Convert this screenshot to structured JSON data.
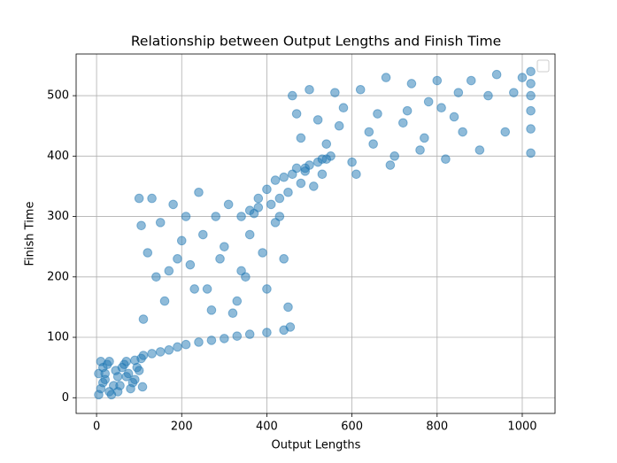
{
  "chart_data": {
    "type": "scatter",
    "title": "Relationship between Output Lengths and Finish Time",
    "x_label": "Output Lengths",
    "y_label": "Finish Time",
    "color": "#1f77b4",
    "grid": true,
    "xlim": [
      -48,
      1077
    ],
    "ylim": [
      -26,
      569
    ],
    "xticks": [
      0,
      200,
      400,
      600,
      800,
      1000
    ],
    "yticks": [
      0,
      100,
      200,
      300,
      400,
      500
    ],
    "x": [
      5,
      10,
      15,
      20,
      25,
      30,
      40,
      50,
      60,
      70,
      80,
      90,
      100,
      105,
      10,
      20,
      35,
      45,
      55,
      65,
      75,
      85,
      95,
      108,
      5,
      15,
      30,
      50,
      70,
      90,
      110,
      130,
      150,
      170,
      190,
      210,
      240,
      270,
      300,
      330,
      360,
      400,
      440,
      455,
      100,
      105,
      120,
      140,
      160,
      180,
      200,
      220,
      240,
      260,
      280,
      300,
      320,
      340,
      360,
      380,
      400,
      420,
      440,
      450,
      110,
      150,
      190,
      230,
      270,
      310,
      350,
      390,
      430,
      130,
      170,
      210,
      250,
      290,
      330,
      340,
      360,
      380,
      400,
      410,
      420,
      430,
      440,
      450,
      460,
      470,
      480,
      490,
      500,
      510,
      520,
      530,
      540,
      550,
      370,
      460,
      470,
      480,
      500,
      520,
      540,
      560,
      580,
      600,
      620,
      640,
      660,
      680,
      700,
      720,
      740,
      760,
      780,
      800,
      820,
      840,
      860,
      880,
      900,
      920,
      940,
      960,
      980,
      1000,
      490,
      530,
      570,
      610,
      650,
      690,
      730,
      770,
      810,
      850,
      1020,
      1020,
      1020,
      1020,
      1020,
      1020
    ],
    "values": [
      5,
      15,
      25,
      40,
      55,
      10,
      20,
      35,
      50,
      60,
      15,
      30,
      45,
      65,
      60,
      30,
      5,
      45,
      20,
      55,
      40,
      25,
      50,
      18,
      40,
      50,
      60,
      10,
      35,
      62,
      70,
      73,
      76,
      79,
      84,
      88,
      92,
      95,
      98,
      102,
      105,
      108,
      112,
      117,
      330,
      285,
      240,
      200,
      160,
      320,
      260,
      220,
      340,
      180,
      300,
      250,
      140,
      210,
      270,
      330,
      180,
      290,
      230,
      150,
      130,
      290,
      230,
      180,
      145,
      320,
      200,
      240,
      300,
      330,
      210,
      300,
      270,
      230,
      160,
      300,
      310,
      315,
      345,
      320,
      360,
      330,
      365,
      340,
      370,
      380,
      355,
      375,
      385,
      350,
      390,
      370,
      395,
      400,
      305,
      500,
      470,
      430,
      510,
      460,
      420,
      505,
      480,
      390,
      510,
      440,
      470,
      530,
      400,
      455,
      520,
      410,
      490,
      525,
      395,
      465,
      440,
      525,
      410,
      500,
      535,
      440,
      505,
      530,
      380,
      395,
      450,
      370,
      420,
      385,
      475,
      430,
      480,
      505,
      405,
      445,
      475,
      500,
      520,
      540
    ]
  }
}
